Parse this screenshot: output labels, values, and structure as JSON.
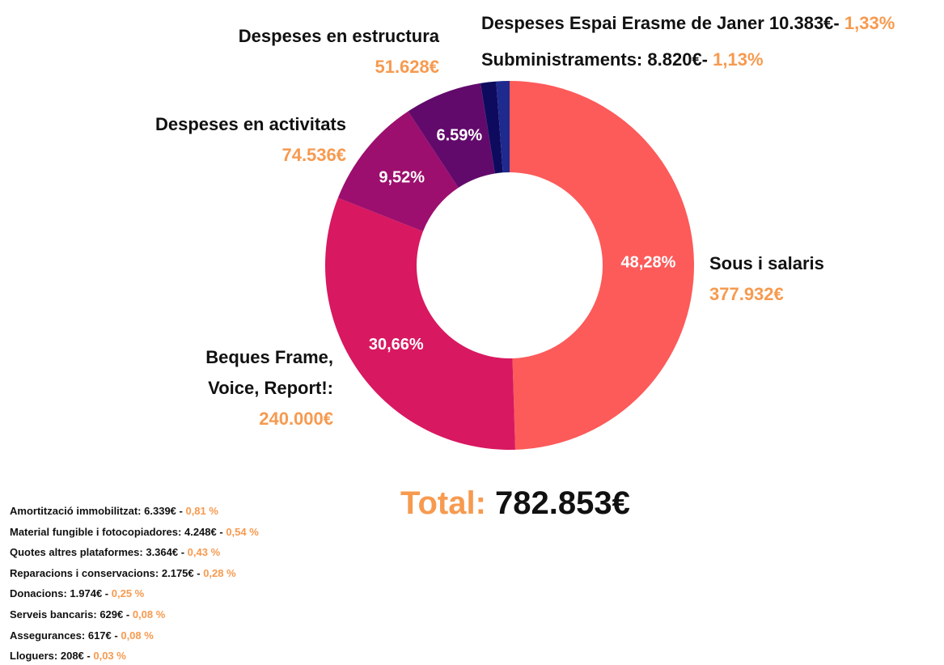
{
  "chart_data": {
    "type": "pie",
    "donut": true,
    "categories": [
      "Sous i salaris",
      "Beques Frame, Voice, Report!:",
      "Despeses en activitats",
      "Despeses en estructura",
      "Despeses Espai Erasme de Janer",
      "Subministraments:"
    ],
    "values": [
      48.28,
      30.66,
      9.52,
      6.59,
      1.33,
      1.13
    ],
    "value_labels": [
      "48,28%",
      "30,66%",
      "9,52%",
      "6.59%",
      "1,33%",
      "1,13%"
    ],
    "amounts": [
      "377.932€",
      "240.000€",
      "74.536€",
      "51.628€",
      "10.383€-",
      "8.820€-"
    ],
    "colors": [
      "#fd5a5a",
      "#d81860",
      "#9c0f6e",
      "#620a6b",
      "#0e0b5e",
      "#1f2a8f"
    ],
    "total_label": "Total:",
    "total": "782.853€",
    "other_expenses": [
      {
        "name": "Amortització immobilitzat:",
        "amount": "6.339€ -",
        "percent": "0,81 %"
      },
      {
        "name": "Material fungible i fotocopiadores:",
        "amount": "4.248€ -",
        "percent": "0,54 %"
      },
      {
        "name": "Quotes altres plataformes:",
        "amount": "3.364€ -",
        "percent": "0,43 %"
      },
      {
        "name": "Reparacions i conservacions:",
        "amount": "2.175€ -",
        "percent": "0,28 %"
      },
      {
        "name": "Donacions:",
        "amount": "1.974€ -",
        "percent": "0,25 %"
      },
      {
        "name": "Serveis bancaris:",
        "amount": "629€ -",
        "percent": "0,08 %"
      },
      {
        "name": "Assegurances:",
        "amount": "617€ -",
        "percent": "0,08 %"
      },
      {
        "name": "Lloguers:",
        "amount": "208€ -",
        "percent": "0,03 %"
      }
    ]
  }
}
